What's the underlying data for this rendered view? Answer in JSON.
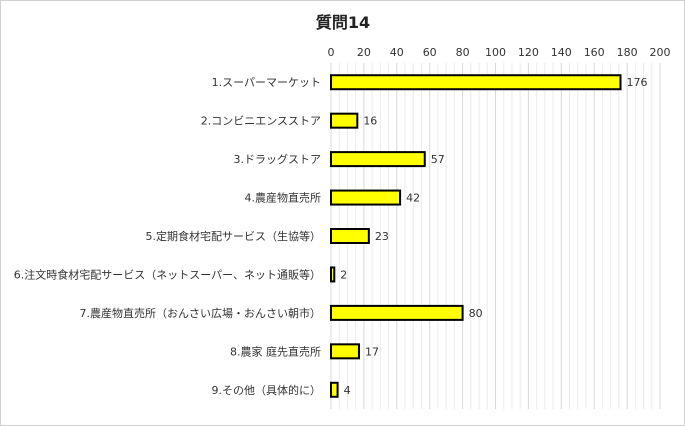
{
  "chart_data": {
    "type": "bar",
    "orientation": "horizontal",
    "title": "質問14",
    "categories": [
      "1.スーパーマーケット",
      "2.コンビニエンスストア",
      "3.ドラッグストア",
      "4.農産物直売所",
      "5.定期食材宅配サービス（生協等）",
      "6.注文時食材宅配サービス（ネットスーパー、ネット通販等）",
      "7.農産物直売所（おんさい広場・おんさい朝市）",
      "8.農家 庭先直売所",
      "9.その他（具体的に）"
    ],
    "values": [
      176,
      16,
      57,
      42,
      23,
      2,
      80,
      17,
      4
    ],
    "xlim": [
      0,
      200
    ],
    "xticks": [
      0,
      20,
      40,
      60,
      80,
      100,
      120,
      140,
      160,
      180,
      200
    ],
    "tick_labels": [
      "0",
      "20",
      "40",
      "60",
      "80",
      "100",
      "120",
      "140",
      "160",
      "180",
      "200"
    ],
    "x_axis_position": "top",
    "grid": true,
    "bar_color": "#ffff00",
    "bar_border_color": "#000000",
    "gridline_color": "#d9d9d9"
  }
}
